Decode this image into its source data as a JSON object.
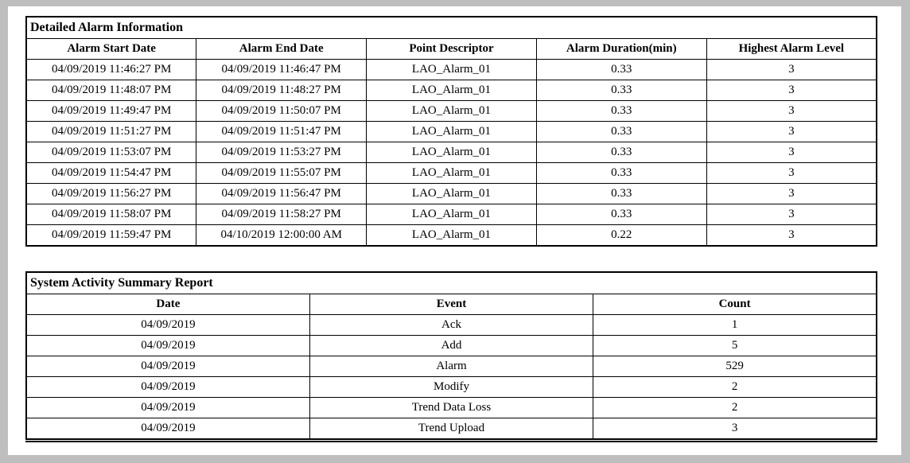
{
  "colors": {
    "page_background": "#ffffff",
    "window_surround": "#bebebe",
    "table_border": "#000000",
    "text": "#000000"
  },
  "alarm_table": {
    "title": "Detailed Alarm Information",
    "columns": [
      "Alarm Start Date",
      "Alarm End Date",
      "Point Descriptor",
      "Alarm Duration(min)",
      "Highest Alarm Level"
    ],
    "rows": [
      [
        "04/09/2019 11:46:27 PM",
        "04/09/2019 11:46:47 PM",
        "LAO_Alarm_01",
        "0.33",
        "3"
      ],
      [
        "04/09/2019 11:48:07 PM",
        "04/09/2019 11:48:27 PM",
        "LAO_Alarm_01",
        "0.33",
        "3"
      ],
      [
        "04/09/2019 11:49:47 PM",
        "04/09/2019 11:50:07 PM",
        "LAO_Alarm_01",
        "0.33",
        "3"
      ],
      [
        "04/09/2019 11:51:27 PM",
        "04/09/2019 11:51:47 PM",
        "LAO_Alarm_01",
        "0.33",
        "3"
      ],
      [
        "04/09/2019 11:53:07 PM",
        "04/09/2019 11:53:27 PM",
        "LAO_Alarm_01",
        "0.33",
        "3"
      ],
      [
        "04/09/2019 11:54:47 PM",
        "04/09/2019 11:55:07 PM",
        "LAO_Alarm_01",
        "0.33",
        "3"
      ],
      [
        "04/09/2019 11:56:27 PM",
        "04/09/2019 11:56:47 PM",
        "LAO_Alarm_01",
        "0.33",
        "3"
      ],
      [
        "04/09/2019 11:58:07 PM",
        "04/09/2019 11:58:27 PM",
        "LAO_Alarm_01",
        "0.33",
        "3"
      ],
      [
        "04/09/2019 11:59:47 PM",
        "04/10/2019 12:00:00 AM",
        "LAO_Alarm_01",
        "0.22",
        "3"
      ]
    ]
  },
  "activity_table": {
    "title": "System Activity Summary Report",
    "columns": [
      "Date",
      "Event",
      "Count"
    ],
    "rows": [
      [
        "04/09/2019",
        "Ack",
        "1"
      ],
      [
        "04/09/2019",
        "Add",
        "5"
      ],
      [
        "04/09/2019",
        "Alarm",
        "529"
      ],
      [
        "04/09/2019",
        "Modify",
        "2"
      ],
      [
        "04/09/2019",
        "Trend Data Loss",
        "2"
      ],
      [
        "04/09/2019",
        "Trend Upload",
        "3"
      ]
    ]
  }
}
